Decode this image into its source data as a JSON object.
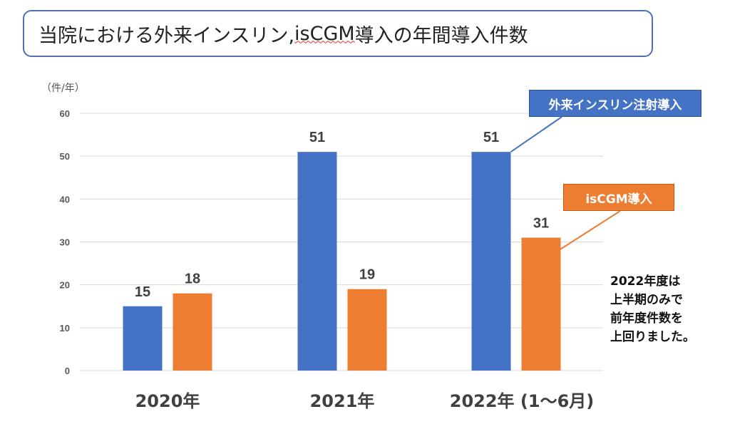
{
  "title": {
    "prefix": "当院における外来インスリン, ",
    "iscgm": "isCGM",
    "suffix": " 導入の年間導入件数"
  },
  "chart_data": {
    "type": "bar",
    "ylabel": "（件/年）",
    "ylim": [
      0,
      60
    ],
    "yticks": [
      "0",
      "10",
      "20",
      "30",
      "40",
      "50",
      "60"
    ],
    "categories": [
      "2020年",
      "2021年",
      "2022年 (1～6月)"
    ],
    "series": [
      {
        "name": "外来インスリン注射導入",
        "values": [
          15,
          51,
          51
        ],
        "color": "#4472c4"
      },
      {
        "name": "isCGM導入",
        "values": [
          18,
          19,
          31
        ],
        "color": "#ed7d31"
      }
    ],
    "grid": true
  },
  "callouts": {
    "insulin": "外来インスリン注射導入",
    "iscgm": "isCGM導入"
  },
  "note": {
    "lines": [
      "2022年度は",
      "上半期のみで",
      "前年度件数を",
      "上回りました。"
    ]
  }
}
